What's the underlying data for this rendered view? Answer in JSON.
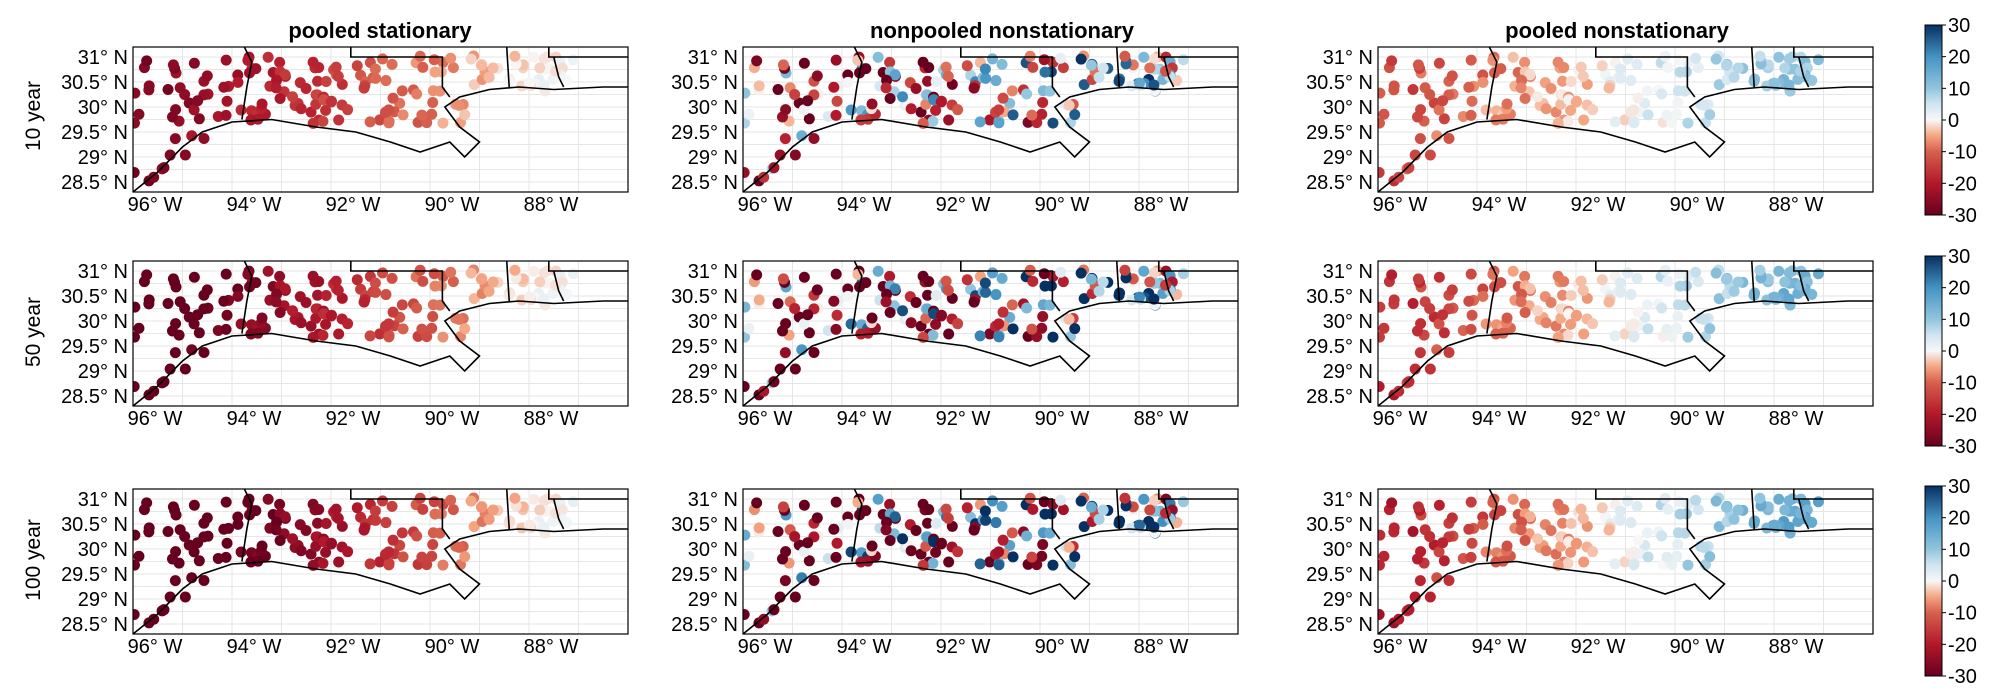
{
  "column_titles": [
    "pooled stationary",
    "nonpooled nonstationary",
    "pooled nonstationary"
  ],
  "row_labels": [
    "10 year",
    "50 year",
    "100 year"
  ],
  "lat_ticks": [
    "31° N",
    "30.5° N",
    "30° N",
    "29.5° N",
    "29° N",
    "28.5° N"
  ],
  "lon_ticks": [
    "96° W",
    "94° W",
    "92° W",
    "90° W",
    "88° W"
  ],
  "colorbar_ticks": [
    "30",
    "20",
    "10",
    "0",
    "-10",
    "-20",
    "-30"
  ],
  "colors": {
    "neg_strong": "#67001f",
    "neg_mid": "#d6604d",
    "neg_light": "#f4a582",
    "neutral": "#f7f7f7",
    "pos_light": "#92c5de",
    "pos_mid": "#4393c3",
    "pos_strong": "#053061"
  },
  "chart_data": {
    "type": "scatter",
    "description_of_encoding": "color encodes relative change in return level (-30 to 30)",
    "lon_range": [
      -96.0,
      -86.0
    ],
    "lat_range": [
      28.3,
      31.2
    ],
    "color_range": [
      -30,
      30
    ],
    "panels_grid": [
      3,
      3
    ],
    "point_pattern": "stations across Texas/Louisiana/Mississippi gulf coast; west stations strongly negative, east stations neutral to positive",
    "legend": "right colorbar per row"
  }
}
